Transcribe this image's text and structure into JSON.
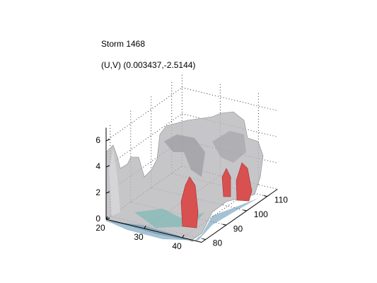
{
  "chart_data": {
    "type": "isosurface3d",
    "title": "Storm 1468",
    "subtitle": "(U,V) (0.003437,-2.5144)",
    "xlim": [
      20,
      45
    ],
    "xticks": [
      20,
      30,
      40
    ],
    "ylim": [
      78,
      115
    ],
    "yticks": [
      80,
      90,
      100,
      110
    ],
    "zlim": [
      0,
      7
    ],
    "zticks": [
      0,
      2,
      4,
      6
    ],
    "grid": true
  }
}
